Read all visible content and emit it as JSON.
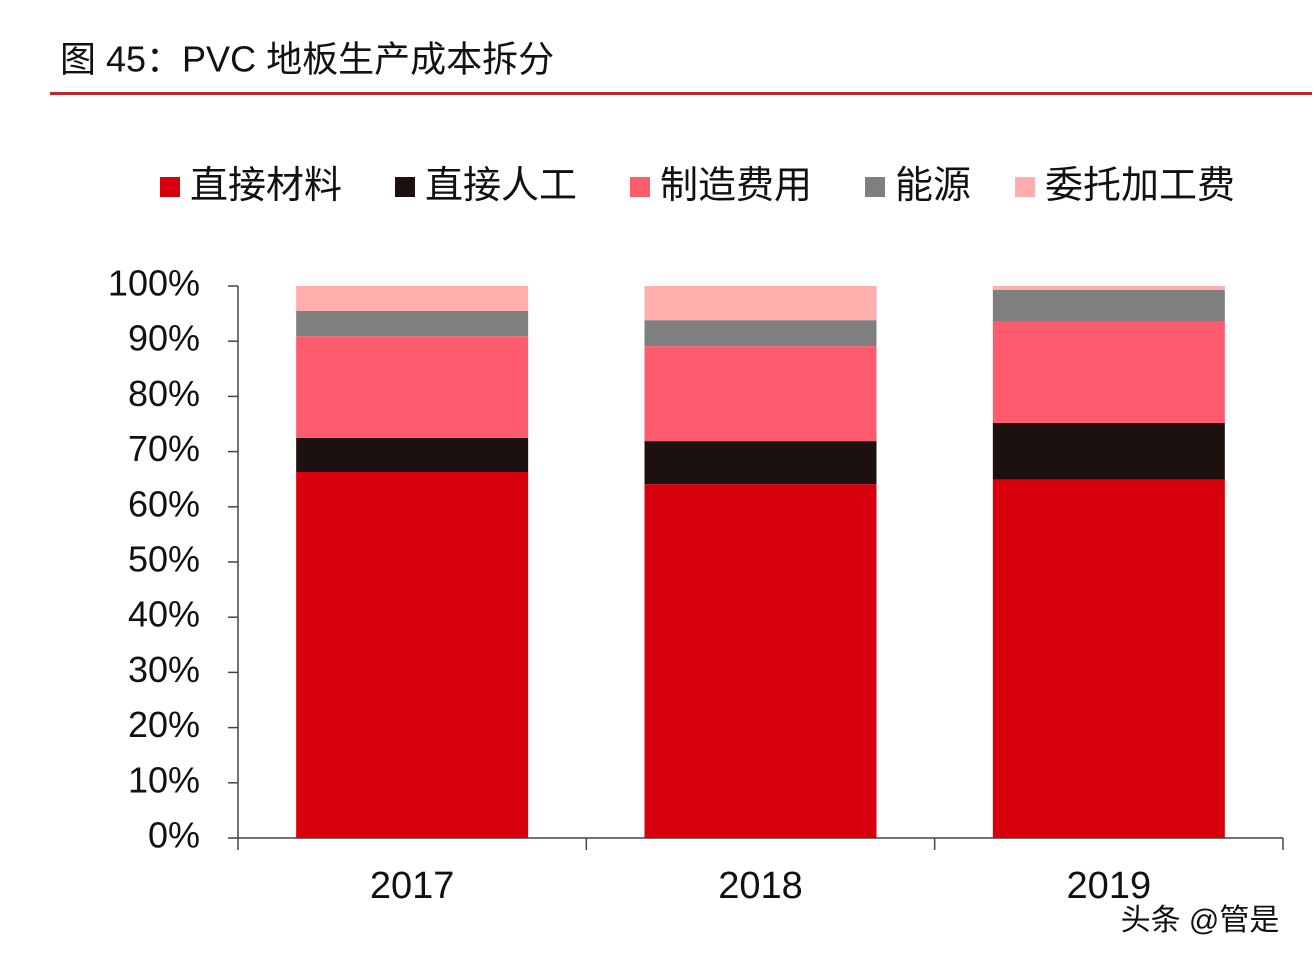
{
  "chart_data": {
    "type": "stacked_bar",
    "title": "图 45：PVC 地板生产成本拆分",
    "categories": [
      "2017",
      "2018",
      "2019"
    ],
    "series": [
      {
        "name": "直接材料",
        "color": "#d9000d",
        "values": [
          66.3,
          64.1,
          64.9
        ]
      },
      {
        "name": "直接人工",
        "color": "#1d1110",
        "values": [
          6.2,
          7.8,
          10.3
        ]
      },
      {
        "name": "制造费用",
        "color": "#ff5b6e",
        "values": [
          18.4,
          17.2,
          18.3
        ]
      },
      {
        "name": "能源",
        "color": "#7f7f7f",
        "values": [
          4.6,
          4.7,
          5.8
        ]
      },
      {
        "name": "委托加工费",
        "color": "#ffaeae",
        "values": [
          4.5,
          6.2,
          0.7
        ]
      }
    ],
    "ylim": [
      0,
      100
    ],
    "yticks": [
      {
        "value": 0,
        "label": "0%"
      },
      {
        "value": 10,
        "label": "10%"
      },
      {
        "value": 20,
        "label": "20%"
      },
      {
        "value": 30,
        "label": "30%"
      },
      {
        "value": 40,
        "label": "40%"
      },
      {
        "value": 50,
        "label": "50%"
      },
      {
        "value": 60,
        "label": "60%"
      },
      {
        "value": 70,
        "label": "70%"
      },
      {
        "value": 80,
        "label": "80%"
      },
      {
        "value": 90,
        "label": "90%"
      },
      {
        "value": 100,
        "label": "100%"
      }
    ],
    "watermark": "头条 @管是"
  }
}
